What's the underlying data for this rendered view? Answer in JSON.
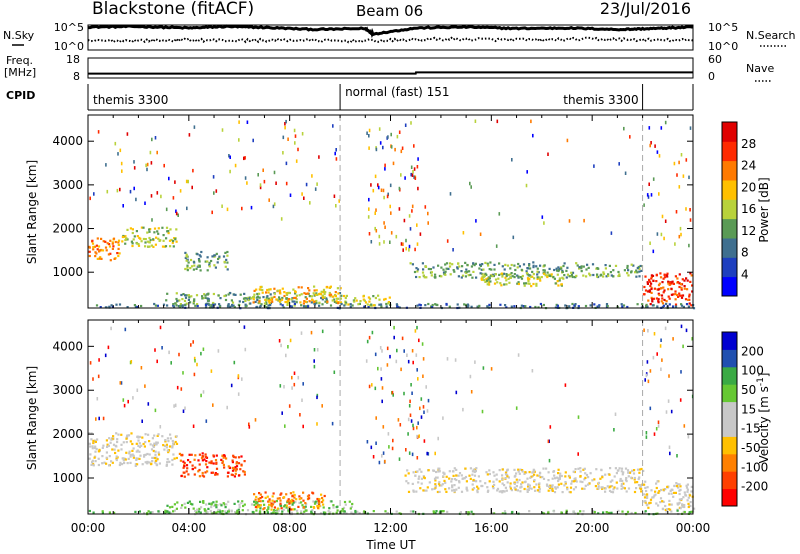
{
  "header": {
    "station": "Blackstone (fitACF)",
    "beam": "Beam 06",
    "date": "23/Jul/2016"
  },
  "left_labels": {
    "nsky": "N.Sky",
    "freq_line1": "Freq.",
    "freq_line2": "[MHz]",
    "cpid": "CPID"
  },
  "right_labels": {
    "nsearch": "N.Search",
    "nave": "Nave"
  },
  "colors": {
    "scale": [
      "#0000ff",
      "#1e3fbf",
      "#3f6f8f",
      "#5a9a55",
      "#b8d23b",
      "#ffc000",
      "#ff7a00",
      "#ff2a00",
      "#e00000"
    ],
    "velocity": [
      "#ff0000",
      "#ff4000",
      "#ff8000",
      "#ffc000",
      "#c8c8c8",
      "#c8c8c8",
      "#66c833",
      "#3aaa44",
      "#2050b0",
      "#0000d0"
    ],
    "ground_scatter": "#c8c8c8"
  },
  "chart_data": [
    {
      "type": "line",
      "title": "N.Sky / N.Search",
      "left_ticks": [
        "10^5",
        "10^0"
      ],
      "right_ticks": [
        "10^5",
        "10^0"
      ],
      "series": [
        {
          "name": "N.Sky",
          "style": "solid",
          "x_hours": [
            0,
            2,
            4,
            5.5,
            7,
            9,
            11,
            11.3,
            13,
            15,
            17,
            19,
            21,
            22.5,
            24
          ],
          "log_values": [
            4.6,
            4.7,
            4.4,
            4.7,
            4.5,
            4.1,
            4.3,
            3.2,
            4.4,
            4.6,
            4.3,
            4.4,
            4.1,
            4.3,
            4.6
          ]
        },
        {
          "name": "N.Search",
          "style": "dotted",
          "x_hours": [
            0,
            2,
            4,
            6,
            8,
            10,
            12,
            14,
            16,
            18,
            20,
            22,
            24
          ],
          "log_values": [
            1.8,
            1.9,
            2.0,
            1.9,
            2.0,
            1.8,
            1.9,
            2.2,
            2.1,
            2.0,
            2.2,
            2.0,
            1.9
          ]
        }
      ]
    },
    {
      "type": "line",
      "title": "Freq. / Nave",
      "left_ticks": [
        "18",
        "8"
      ],
      "right_ticks": [
        "60",
        "0"
      ],
      "ylim_left": [
        8,
        18
      ],
      "series": [
        {
          "name": "Freq. [MHz]",
          "style": "solid",
          "x_hours": [
            0,
            13,
            13.01,
            24
          ],
          "values": [
            10.2,
            10.2,
            10.8,
            10.8
          ]
        }
      ]
    },
    {
      "type": "table",
      "title": "CPID",
      "segments": [
        {
          "label": "themis 3300",
          "start_hour": 0,
          "end_hour": 10
        },
        {
          "label": "normal (fast) 151",
          "start_hour": 10,
          "end_hour": 22
        },
        {
          "label": "themis 3300",
          "start_hour": 22,
          "end_hour": 24
        }
      ]
    },
    {
      "type": "heatmap",
      "panel": "power",
      "ylabel": "Slant Range [km]",
      "yticks": [
        1000,
        2000,
        3000,
        4000
      ],
      "ylim": [
        180,
        4600
      ],
      "xlim_hours": [
        0,
        24
      ],
      "colorbar": {
        "label": "Power [dB]",
        "ticks": [
          28,
          24,
          20,
          16,
          12,
          8,
          4
        ]
      },
      "blobs": [
        {
          "h0": 0.0,
          "h1": 1.3,
          "r0": 1300,
          "r1": 1800,
          "level": 6
        },
        {
          "h0": 1.3,
          "h1": 3.5,
          "r0": 1600,
          "r1": 2050,
          "level": 4
        },
        {
          "h0": 3.8,
          "h1": 5.5,
          "r0": 1050,
          "r1": 1500,
          "level": 3
        },
        {
          "h0": 3.0,
          "h1": 10.0,
          "r0": 250,
          "r1": 550,
          "level": 3
        },
        {
          "h0": 6.5,
          "h1": 10.0,
          "r0": 300,
          "r1": 700,
          "level": 5
        },
        {
          "h0": 10.0,
          "h1": 12.0,
          "r0": 250,
          "r1": 500,
          "level": 4
        },
        {
          "h0": 12.7,
          "h1": 20.0,
          "r0": 900,
          "r1": 1250,
          "level": 3
        },
        {
          "h0": 15.5,
          "h1": 19.0,
          "r0": 700,
          "r1": 1000,
          "level": 4
        },
        {
          "h0": 20.0,
          "h1": 22.0,
          "r0": 900,
          "r1": 1200,
          "level": 3
        },
        {
          "h0": 22.0,
          "h1": 24.0,
          "r0": 250,
          "r1": 1000,
          "level": 7
        },
        {
          "h0": 0.0,
          "h1": 24.0,
          "r0": 200,
          "r1": 300,
          "level": 2
        }
      ],
      "sparse": [
        {
          "h0": 0.0,
          "h1": 10.0,
          "r0": 2200,
          "r1": 4500,
          "n": 110
        },
        {
          "h0": 11.0,
          "h1": 13.5,
          "r0": 1500,
          "r1": 4500,
          "n": 90
        },
        {
          "h0": 13.5,
          "h1": 21.5,
          "r0": 1400,
          "r1": 4500,
          "n": 30
        },
        {
          "h0": 22.0,
          "h1": 24.0,
          "r0": 1500,
          "r1": 4500,
          "n": 40
        }
      ]
    },
    {
      "type": "heatmap",
      "panel": "velocity",
      "ylabel": "Slant Range [km]",
      "xlabel": "Time UT",
      "xticks": [
        "00:00",
        "04:00",
        "08:00",
        "12:00",
        "16:00",
        "20:00",
        "00:00"
      ],
      "yticks": [
        1000,
        2000,
        3000,
        4000
      ],
      "ylim": [
        180,
        4600
      ],
      "xlim_hours": [
        0,
        24
      ],
      "colorbar": {
        "label": "Velocity [m s^-1]",
        "ticks": [
          200,
          100,
          50,
          15,
          -15,
          -50,
          -100,
          -200
        ]
      },
      "blobs": [
        {
          "h0": 0.0,
          "h1": 3.5,
          "r0": 1300,
          "r1": 2050,
          "level": 4
        },
        {
          "h0": 3.6,
          "h1": 6.2,
          "r0": 1050,
          "r1": 1600,
          "level": 1
        },
        {
          "h0": 3.0,
          "h1": 10.5,
          "r0": 200,
          "r1": 500,
          "level": 6
        },
        {
          "h0": 6.5,
          "h1": 9.5,
          "r0": 300,
          "r1": 700,
          "level": 2
        },
        {
          "h0": 12.5,
          "h1": 22.0,
          "r0": 700,
          "r1": 1250,
          "level": 4
        },
        {
          "h0": 22.0,
          "h1": 24.0,
          "r0": 250,
          "r1": 950,
          "level": 4
        },
        {
          "h0": 0.0,
          "h1": 24.0,
          "r0": 200,
          "r1": 280,
          "level": 6
        }
      ],
      "sparse": [
        {
          "h0": 0.0,
          "h1": 10.0,
          "r0": 2200,
          "r1": 4500,
          "n": 100
        },
        {
          "h0": 11.0,
          "h1": 13.5,
          "r0": 1300,
          "r1": 4500,
          "n": 90
        },
        {
          "h0": 13.5,
          "h1": 21.5,
          "r0": 1400,
          "r1": 4500,
          "n": 25
        },
        {
          "h0": 22.0,
          "h1": 24.0,
          "r0": 1500,
          "r1": 4500,
          "n": 40
        }
      ]
    }
  ]
}
